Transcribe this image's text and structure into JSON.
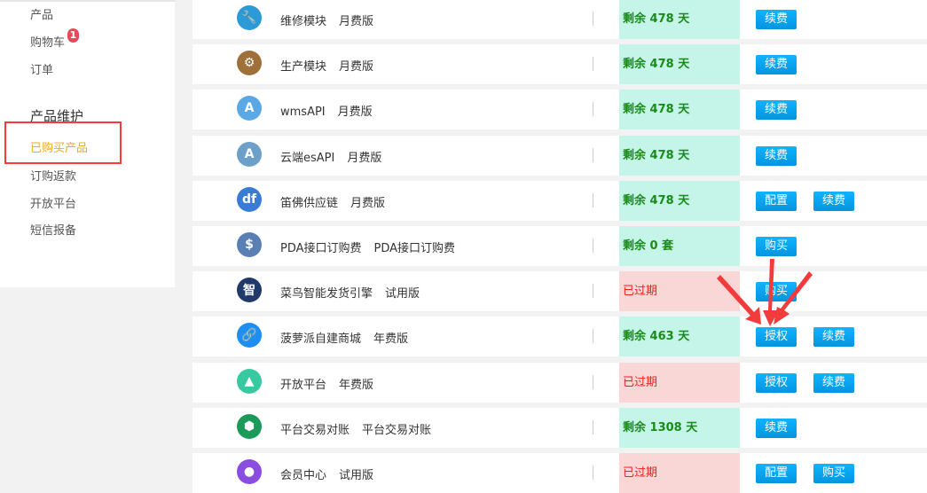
{
  "sidebar": {
    "items": [
      "产品",
      "购物车",
      "订单"
    ],
    "cart_badge": "1",
    "group_title": "产品维护",
    "sub_items": [
      "已购买产品",
      "订购返款",
      "开放平台",
      "短信报备"
    ],
    "active": "已购买产品"
  },
  "colors": {
    "accent": "#0ea5ef",
    "ok_bg": "#c5f5e9",
    "expired_bg": "#f8d7d6",
    "highlight": "#f53b3b"
  },
  "rows": [
    {
      "name": "维修模块",
      "plan": "月费版",
      "status": "剩余 478 天",
      "state": "ok",
      "buttons": [
        "续费"
      ],
      "icon": "wrench-icon",
      "color": "#2b9ad6",
      "glyph": "🔧"
    },
    {
      "name": "生产模块",
      "plan": "月费版",
      "status": "剩余 478 天",
      "state": "ok",
      "buttons": [
        "续费"
      ],
      "icon": "gear-icon",
      "color": "#a0703a",
      "glyph": "⚙"
    },
    {
      "name": "wmsAPI",
      "plan": "月费版",
      "status": "剩余 478 天",
      "state": "ok",
      "buttons": [
        "续费"
      ],
      "icon": "api-icon",
      "color": "#5aa9e6",
      "glyph": "A"
    },
    {
      "name": "云端esAPI",
      "plan": "月费版",
      "status": "剩余 478 天",
      "state": "ok",
      "buttons": [
        "续费"
      ],
      "icon": "api-icon",
      "color": "#6da0c8",
      "glyph": "A"
    },
    {
      "name": "笛佛供应链",
      "plan": "月费版",
      "status": "剩余 478 天",
      "state": "ok",
      "buttons": [
        "配置",
        "续费"
      ],
      "icon": "df-logo-icon",
      "color": "#3a7bd5",
      "glyph": "df"
    },
    {
      "name": "PDA接口订购费",
      "plan": "PDA接口订购费",
      "status": "剩余 0 套",
      "state": "ok",
      "buttons": [
        "购买"
      ],
      "icon": "pda-icon",
      "color": "#5a7fb5",
      "glyph": "$"
    },
    {
      "name": "菜鸟智能发货引擎",
      "plan": "试用版",
      "status": "已过期",
      "state": "expired",
      "buttons": [
        "购买"
      ],
      "icon": "cainiao-icon",
      "color": "#1f3a6b",
      "glyph": "智"
    },
    {
      "name": "菠萝派自建商城",
      "plan": "年费版",
      "status": "剩余 463 天",
      "state": "ok",
      "buttons": [
        "授权",
        "续费"
      ],
      "icon": "link-icon",
      "color": "#1e8ff0",
      "glyph": "🔗"
    },
    {
      "name": "开放平台",
      "plan": "年费版",
      "status": "已过期",
      "state": "expired",
      "buttons": [
        "授权",
        "续费"
      ],
      "icon": "prism-icon",
      "color": "#38c9a0",
      "glyph": "▲"
    },
    {
      "name": "平台交易对账",
      "plan": "平台交易对账",
      "status": "剩余 1308 天",
      "state": "ok",
      "buttons": [
        "续费"
      ],
      "icon": "shield-icon",
      "color": "#1c9a5a",
      "glyph": "⬢"
    },
    {
      "name": "会员中心",
      "plan": "试用版",
      "status": "已过期",
      "state": "expired",
      "buttons": [
        "配置",
        "购买"
      ],
      "icon": "member-icon",
      "color": "#8a4de0",
      "glyph": "●"
    }
  ]
}
